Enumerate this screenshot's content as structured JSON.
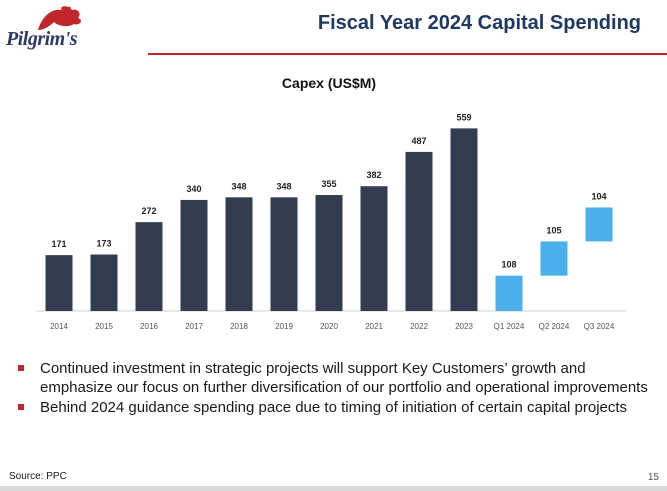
{
  "header": {
    "logo_text": "Pilgrim's",
    "title": "Fiscal Year 2024 Capital Spending"
  },
  "chart_data": {
    "type": "bar",
    "title": "Capex (US$M)",
    "categories": [
      "2014",
      "2015",
      "2016",
      "2017",
      "2018",
      "2019",
      "2020",
      "2021",
      "2022",
      "2023",
      "Q1 2024",
      "Q2 2024",
      "Q3 2024"
    ],
    "values": [
      171,
      173,
      272,
      340,
      348,
      348,
      355,
      382,
      487,
      559,
      108,
      105,
      104
    ],
    "series_style": [
      "annual",
      "annual",
      "annual",
      "annual",
      "annual",
      "annual",
      "annual",
      "annual",
      "annual",
      "annual",
      "waterfall",
      "waterfall",
      "waterfall"
    ],
    "ylim": [
      0,
      600
    ],
    "xlabel": "",
    "ylabel": "",
    "grid": false,
    "colors": {
      "annual": "#333d4f",
      "waterfall": "#4bb0ea"
    }
  },
  "bullets": [
    "Continued investment in strategic projects will support Key Customers’ growth and emphasize our focus on further diversification of our portfolio and operational improvements",
    "Behind 2024 guidance spending pace due to timing of initiation of certain capital projects"
  ],
  "footer": {
    "source": "Source: PPC",
    "page_number": "15"
  },
  "colors": {
    "accent_red": "#c0272d",
    "title_navy": "#1f3864"
  }
}
